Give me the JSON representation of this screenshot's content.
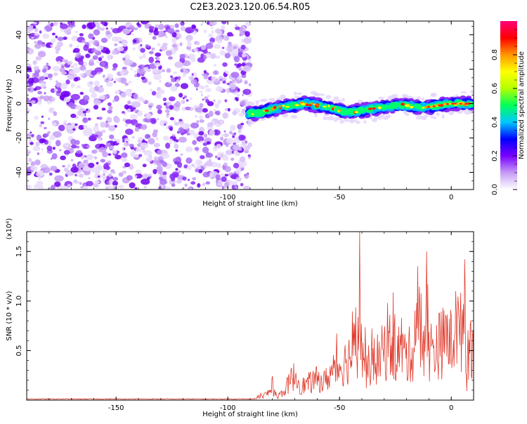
{
  "page_title": "C2E3.2023.120.06.54.R05",
  "chart_data": [
    {
      "type": "heatmap",
      "title": "C2E3.2023.120.06.54.R05",
      "xlabel": "Height of straight line (km)",
      "ylabel": "Frequency (Hz)",
      "xlim": [
        -190,
        10
      ],
      "ylim": [
        -50,
        48
      ],
      "x_ticks": [
        -150,
        -100,
        -50,
        0
      ],
      "y_ticks": [
        -40,
        -20,
        0,
        20,
        40
      ],
      "noise_region_x": [
        -190,
        -92
      ],
      "signal_region_x": [
        -92,
        10
      ],
      "signal_trace": [
        {
          "x": -92,
          "y": -6
        },
        {
          "x": -85,
          "y": -5
        },
        {
          "x": -80,
          "y": -3
        },
        {
          "x": -75,
          "y": -2
        },
        {
          "x": -70,
          "y": -1
        },
        {
          "x": -65,
          "y": 0
        },
        {
          "x": -60,
          "y": -1
        },
        {
          "x": -55,
          "y": -2
        },
        {
          "x": -50,
          "y": -4
        },
        {
          "x": -45,
          "y": -5
        },
        {
          "x": -40,
          "y": -4
        },
        {
          "x": -35,
          "y": -3
        },
        {
          "x": -30,
          "y": -2
        },
        {
          "x": -25,
          "y": -1
        },
        {
          "x": -20,
          "y": -1
        },
        {
          "x": -15,
          "y": -2
        },
        {
          "x": -10,
          "y": -2
        },
        {
          "x": -5,
          "y": -1
        },
        {
          "x": 0,
          "y": 0
        },
        {
          "x": 5,
          "y": 0
        },
        {
          "x": 10,
          "y": 0
        }
      ],
      "colorbar": {
        "label": "Normalized spectral amplitude",
        "min": 0.0,
        "max": 1.0,
        "ticks": [
          "0.0",
          "0.2",
          "0.4",
          "0.6",
          "0.8"
        ],
        "colors": [
          "#ffffff",
          "#c59cf6",
          "#7a00ff",
          "#0000ff",
          "#00c8ff",
          "#00ff5a",
          "#b4ff00",
          "#ffff00",
          "#ff9600",
          "#ff0000",
          "#ff0078"
        ]
      }
    },
    {
      "type": "line",
      "title": "",
      "xlabel": "Height of straight line (km)",
      "ylabel": "SNR (10 * v/v)",
      "scale_label": "(x10⁴)",
      "xlim": [
        -190,
        10
      ],
      "ylim": [
        0.0,
        1.7
      ],
      "x_ticks": [
        -150,
        -100,
        -50,
        0
      ],
      "y_ticks": [
        0.5,
        1.0,
        1.5
      ],
      "color": "#e03c2e",
      "series": [
        {
          "x": [
            -190,
            -170,
            -150,
            -130,
            -110,
            -95,
            -88,
            -84,
            -82,
            -80,
            -78,
            -75,
            -72,
            -70,
            -67,
            -64,
            -60,
            -57,
            -54,
            -50,
            -47,
            -44,
            -42,
            -41,
            -40,
            -38,
            -35,
            -32,
            -30,
            -27,
            -25,
            -22,
            -20,
            -17,
            -15,
            -13,
            -11,
            -10,
            -8,
            -5,
            -3,
            -2,
            0,
            2,
            4,
            6,
            7,
            8,
            10
          ],
          "values": [
            0.01,
            0.01,
            0.01,
            0.01,
            0.01,
            0.01,
            0.03,
            0.06,
            0.1,
            0.17,
            0.04,
            0.12,
            0.28,
            0.36,
            0.2,
            0.24,
            0.3,
            0.26,
            0.38,
            0.48,
            0.56,
            0.7,
            0.85,
            1.7,
            0.65,
            0.45,
            0.55,
            0.6,
            0.72,
            0.8,
            0.65,
            0.78,
            0.6,
            0.72,
            1.35,
            0.55,
            1.5,
            0.7,
            0.75,
            0.8,
            0.85,
            0.95,
            0.8,
            1.1,
            0.9,
            1.42,
            0.35,
            0.9,
            0.8
          ]
        }
      ]
    }
  ]
}
